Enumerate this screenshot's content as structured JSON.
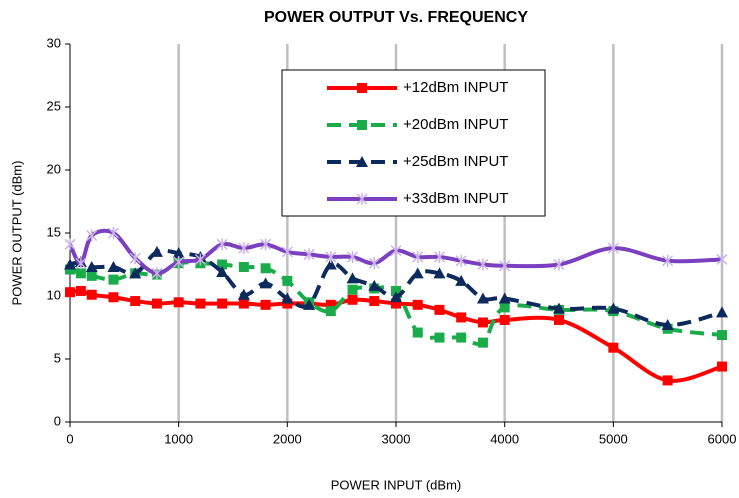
{
  "chart_data": {
    "type": "line",
    "title": "POWER OUTPUT Vs. FREQUENCY",
    "x_label": "POWER INPUT (dBm)",
    "y_label": "POWER OUTPUT (dBm)",
    "x": [
      0,
      100,
      200,
      400,
      600,
      800,
      1000,
      1200,
      1400,
      1600,
      1800,
      2000,
      2200,
      2400,
      2600,
      2800,
      3000,
      3200,
      3400,
      3600,
      3800,
      4000,
      4500,
      5000,
      5500,
      6000
    ],
    "series": [
      {
        "name": "+12dBm INPUT",
        "color": "#ff0000",
        "marker": "square",
        "dash": false,
        "values": [
          10.3,
          10.4,
          10.1,
          9.9,
          9.6,
          9.4,
          9.5,
          9.4,
          9.4,
          9.4,
          9.3,
          9.4,
          9.4,
          9.3,
          9.7,
          9.6,
          9.4,
          9.3,
          8.9,
          8.3,
          7.9,
          8.1,
          8.1,
          5.9,
          3.3,
          4.4
        ]
      },
      {
        "name": "+20dBm INPUT",
        "color": "#1aab4a",
        "marker": "square",
        "dash": true,
        "values": [
          12.1,
          11.8,
          11.6,
          11.3,
          11.8,
          11.7,
          12.6,
          12.6,
          12.5,
          12.3,
          12.2,
          11.2,
          9.5,
          8.8,
          10.5,
          10.6,
          10.4,
          7.1,
          6.7,
          6.7,
          6.3,
          9.1,
          8.9,
          8.8,
          7.4,
          6.9
        ]
      },
      {
        "name": "+25dBm INPUT",
        "color": "#0d2a5c",
        "marker": "triangle",
        "dash": true,
        "values": [
          12.5,
          12.7,
          12.3,
          12.3,
          11.8,
          13.5,
          13.4,
          13.1,
          11.9,
          10.1,
          11.0,
          9.8,
          9.3,
          12.5,
          11.4,
          10.8,
          9.9,
          11.8,
          11.8,
          11.2,
          9.8,
          9.8,
          9.0,
          9.0,
          7.7,
          8.7
        ]
      },
      {
        "name": "+33dBm INPUT",
        "color": "#7b3fbf",
        "marker": "star",
        "dash": false,
        "values": [
          14.1,
          12.6,
          14.8,
          15.0,
          13.0,
          11.8,
          12.7,
          12.9,
          14.1,
          13.8,
          14.1,
          13.5,
          13.3,
          13.1,
          13.1,
          12.6,
          13.6,
          13.1,
          13.1,
          12.8,
          12.5,
          12.4,
          12.5,
          13.8,
          12.8,
          12.9
        ]
      }
    ],
    "xlim": [
      0,
      6000
    ],
    "xticks": [
      0,
      1000,
      2000,
      3000,
      4000,
      5000,
      6000
    ],
    "ylim": [
      0,
      30
    ],
    "yticks": [
      0,
      5,
      10,
      15,
      20,
      25,
      30
    ],
    "grid": "x"
  }
}
